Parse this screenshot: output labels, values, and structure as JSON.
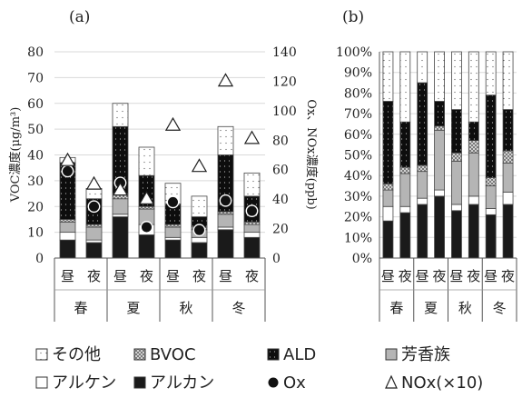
{
  "charts": [
    {
      "panel_label": "(a)",
      "type": "stacked-bar-with-markers",
      "left_axis": {
        "label": "VOC濃度(μg/m³)",
        "ticks": [
          "0",
          "10",
          "20",
          "30",
          "40",
          "50",
          "60",
          "70",
          "80"
        ],
        "range": [
          0,
          80
        ]
      },
      "right_axis": {
        "label": "Ox、NOx濃度(ppb)",
        "ticks": [
          "0",
          "20",
          "40",
          "60",
          "80",
          "100",
          "120",
          "140"
        ],
        "range": [
          0,
          140
        ]
      },
      "categories": [
        "昼",
        "夜",
        "昼",
        "夜",
        "昼",
        "夜",
        "昼",
        "夜"
      ],
      "groups": [
        "春",
        "夏",
        "秋",
        "冬"
      ],
      "series": [
        {
          "name": "アルカン",
          "values": [
            7,
            6,
            16,
            9,
            7,
            6,
            11,
            8
          ]
        },
        {
          "name": "アルケン",
          "values": [
            3,
            1,
            1,
            4,
            1,
            2,
            1,
            2
          ]
        },
        {
          "name": "芳香族",
          "values": [
            4,
            5,
            6,
            6,
            4,
            3,
            5,
            3
          ]
        },
        {
          "name": "BVOC",
          "values": [
            1,
            1,
            2,
            1,
            1,
            1,
            1,
            1
          ]
        },
        {
          "name": "ALD",
          "values": [
            22,
            10,
            26,
            12,
            8,
            4,
            22,
            10
          ]
        },
        {
          "name": "その他",
          "values": [
            2,
            4,
            9,
            11,
            8,
            8,
            11,
            9
          ]
        }
      ],
      "markers": [
        {
          "name": "Ox",
          "axis": "right",
          "values": [
            59,
            35,
            51,
            21,
            38,
            19,
            39,
            32
          ]
        },
        {
          "name": "NOx(×10)",
          "axis": "right",
          "values": [
            66,
            50,
            46,
            40,
            90,
            62,
            120,
            81
          ]
        }
      ]
    },
    {
      "panel_label": "(b)",
      "type": "stacked-bar-percent",
      "axis": {
        "ticks": [
          "0%",
          "10%",
          "20%",
          "30%",
          "40%",
          "50%",
          "60%",
          "70%",
          "80%",
          "90%",
          "100%"
        ],
        "range": [
          0,
          100
        ]
      },
      "categories": [
        "昼",
        "夜",
        "昼",
        "夜",
        "昼",
        "夜",
        "昼",
        "夜"
      ],
      "groups": [
        "春",
        "夏",
        "秋",
        "冬"
      ],
      "series": [
        {
          "name": "アルカン",
          "values": [
            18,
            22,
            26,
            30,
            23,
            26,
            21,
            26
          ]
        },
        {
          "name": "アルケン",
          "values": [
            7,
            3,
            3,
            3,
            3,
            4,
            3,
            6
          ]
        },
        {
          "name": "芳香族",
          "values": [
            8,
            16,
            13,
            29,
            21,
            21,
            11,
            14
          ]
        },
        {
          "name": "BVOC",
          "values": [
            3,
            3,
            3,
            2,
            4,
            6,
            4,
            6
          ]
        },
        {
          "name": "ALD",
          "values": [
            40,
            22,
            40,
            12,
            21,
            9,
            40,
            20
          ]
        },
        {
          "name": "その他",
          "values": [
            24,
            34,
            15,
            24,
            28,
            34,
            21,
            28
          ]
        }
      ]
    }
  ],
  "chart_data": [
    {
      "type": "bar",
      "title": "(a)",
      "stacked": true,
      "ylabel": "VOC濃度(μg/m³)",
      "ylim": [
        0,
        80
      ],
      "y2label": "Ox、NOx濃度(ppb)",
      "y2lim": [
        0,
        140
      ],
      "categories": [
        "春 昼",
        "春 夜",
        "夏 昼",
        "夏 夜",
        "秋 昼",
        "秋 夜",
        "冬 昼",
        "冬 夜"
      ],
      "series": [
        {
          "name": "アルカン",
          "values": [
            7,
            6,
            16,
            9,
            7,
            6,
            11,
            8
          ]
        },
        {
          "name": "アルケン",
          "values": [
            3,
            1,
            1,
            4,
            1,
            2,
            1,
            2
          ]
        },
        {
          "name": "芳香族",
          "values": [
            4,
            5,
            6,
            6,
            4,
            3,
            5,
            3
          ]
        },
        {
          "name": "BVOC",
          "values": [
            1,
            1,
            2,
            1,
            1,
            1,
            1,
            1
          ]
        },
        {
          "name": "ALD",
          "values": [
            22,
            10,
            26,
            12,
            8,
            4,
            22,
            10
          ]
        },
        {
          "name": "その他",
          "values": [
            2,
            4,
            9,
            11,
            8,
            8,
            11,
            9
          ]
        },
        {
          "name": "Ox",
          "type": "scatter",
          "axis": "y2",
          "values": [
            59,
            35,
            51,
            21,
            38,
            19,
            39,
            32
          ]
        },
        {
          "name": "NOx(×10)",
          "type": "scatter",
          "axis": "y2",
          "values": [
            66,
            50,
            46,
            40,
            90,
            62,
            120,
            81
          ]
        }
      ]
    },
    {
      "type": "bar",
      "title": "(b)",
      "stacked": true,
      "ylim": [
        0,
        100
      ],
      "categories": [
        "春 昼",
        "春 夜",
        "夏 昼",
        "夏 夜",
        "秋 昼",
        "秋 夜",
        "冬 昼",
        "冬 夜"
      ],
      "series": [
        {
          "name": "アルカン",
          "values": [
            18,
            22,
            26,
            30,
            23,
            26,
            21,
            26
          ]
        },
        {
          "name": "アルケン",
          "values": [
            7,
            3,
            3,
            3,
            3,
            4,
            3,
            6
          ]
        },
        {
          "name": "芳香族",
          "values": [
            8,
            16,
            13,
            29,
            21,
            21,
            11,
            14
          ]
        },
        {
          "name": "BVOC",
          "values": [
            3,
            3,
            3,
            2,
            4,
            6,
            4,
            6
          ]
        },
        {
          "name": "ALD",
          "values": [
            40,
            22,
            40,
            12,
            21,
            9,
            40,
            20
          ]
        },
        {
          "name": "その他",
          "values": [
            24,
            34,
            15,
            24,
            28,
            34,
            21,
            28
          ]
        }
      ]
    }
  ],
  "legend": [
    {
      "name": "その他",
      "symbol": "dotted-box"
    },
    {
      "name": "BVOC",
      "symbol": "hatched-box"
    },
    {
      "name": "ALD",
      "symbol": "black-dotted-box"
    },
    {
      "name": "芳香族",
      "symbol": "gray-box"
    },
    {
      "name": "アルケン",
      "symbol": "white-box"
    },
    {
      "name": "アルカン",
      "symbol": "black-box"
    },
    {
      "name": "Ox",
      "symbol": "circle"
    },
    {
      "name": "NOx(×10)",
      "symbol": "triangle"
    }
  ],
  "colors": {
    "alkane": "#1a1a1a",
    "alkene": "#ffffff",
    "aromatic": "#b5b5b5",
    "bvoc": "#dcdcdc",
    "ald": "#0d0d0d",
    "other": "#ffffff",
    "axis": "#555555",
    "grid": "#d9d9d9"
  }
}
